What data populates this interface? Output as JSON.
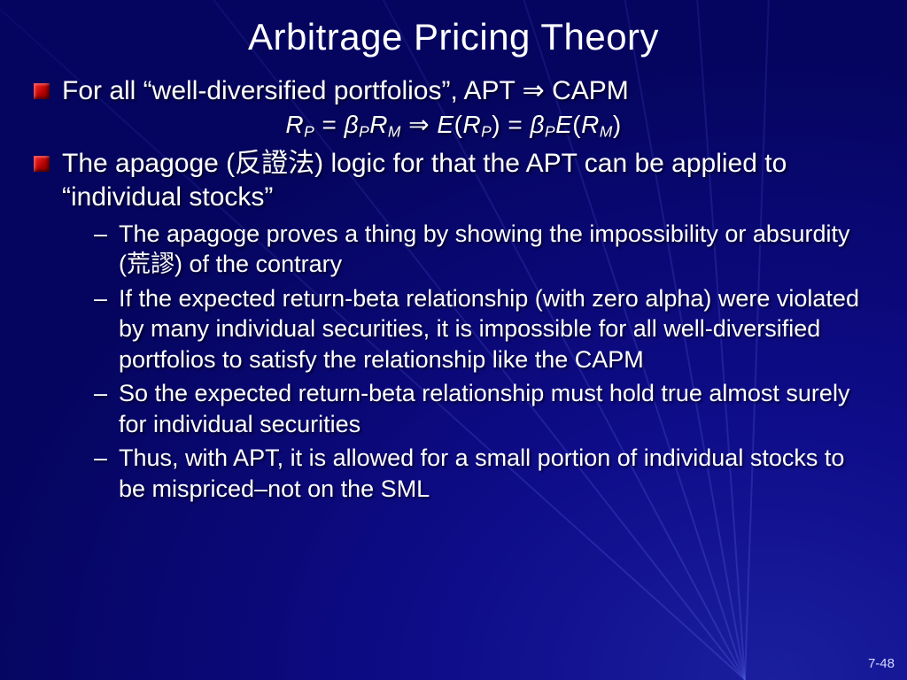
{
  "colors": {
    "bg_inner": "#1a1f9e",
    "bg_outer": "#050560",
    "text": "#ffffff",
    "bullet_grad_a": "#ff2a2a",
    "bullet_grad_b": "#700000",
    "ray": "rgba(80,90,220,0.35)"
  },
  "typography": {
    "title_fontsize": 42,
    "bullet_fontsize": 30,
    "sub_bullet_fontsize": 27,
    "formula_fontsize": 28,
    "pagenum_fontsize": 15,
    "font_family": "Arial"
  },
  "rays": [
    -138,
    -128,
    -118,
    -108,
    -100,
    -94,
    -88
  ],
  "title": "Arbitrage Pricing Theory",
  "bullets": [
    {
      "text_html": "For all “well-diversified portfolios”, APT ⇒ CAPM",
      "formula_html": "R<span class='sub'>P</span> <span class='up'>=</span> β<span class='sub'>P</span>R<span class='sub'>M</span> <span class='up'>⇒</span> E<span class='up'>(</span>R<span class='sub'>P</span><span class='up'>)</span> <span class='up'>=</span> β<span class='sub'>P</span>E<span class='up'>(</span>R<span class='sub'>M</span><span class='up'>)</span>"
    },
    {
      "text_html": "The apagoge (<span class='cjk'>反證法</span>) logic for that the APT can be applied to “individual stocks”",
      "sub": [
        "The apagoge proves a thing by showing the impossibility or absurdity (<span class='cjk'>荒謬</span>) of the contrary",
        "If the expected return-beta relationship (with zero alpha) were violated by many individual securities, it is impossible for all well-diversified portfolios to satisfy the relationship like the CAPM",
        "So the expected return-beta relationship must hold true almost surely for individual securities",
        "Thus, with APT, it is allowed for a small portion of individual stocks to be mispriced–not on the SML"
      ]
    }
  ],
  "page_number": "7-48"
}
